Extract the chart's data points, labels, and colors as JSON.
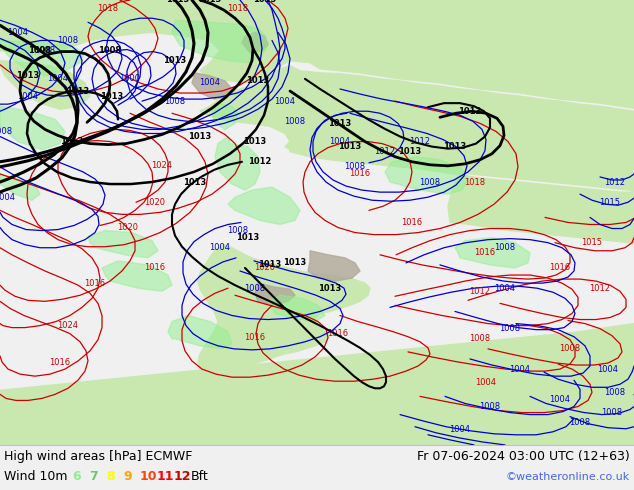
{
  "title_left": "High wind areas [hPa] ECMWF",
  "title_right": "Fr 07-06-2024 03:00 UTC (12+63)",
  "subtitle_left": "Wind 10m",
  "legend_values": [
    "6",
    "7",
    "8",
    "9",
    "10",
    "11",
    "12"
  ],
  "legend_colors": [
    "#90ee90",
    "#66cc66",
    "#ffff00",
    "#ffa500",
    "#ff4500",
    "#ff0000",
    "#cc0000"
  ],
  "legend_suffix": "Bft",
  "credit": "©weatheronline.co.uk",
  "credit_color": "#4169e1",
  "sea_color": "#f0f0f0",
  "land_color": "#c8e8b0",
  "green_wind_color": "#90ee90",
  "fig_width": 6.34,
  "fig_height": 4.9,
  "dpi": 100,
  "bottom_bar_color": "#f0f0f0",
  "text_color": "#000000",
  "font_size_title": 9,
  "font_size_legend": 9,
  "font_size_credit": 8,
  "red_color": "#cc0000",
  "blue_color": "#0000cc",
  "black_color": "#000000"
}
